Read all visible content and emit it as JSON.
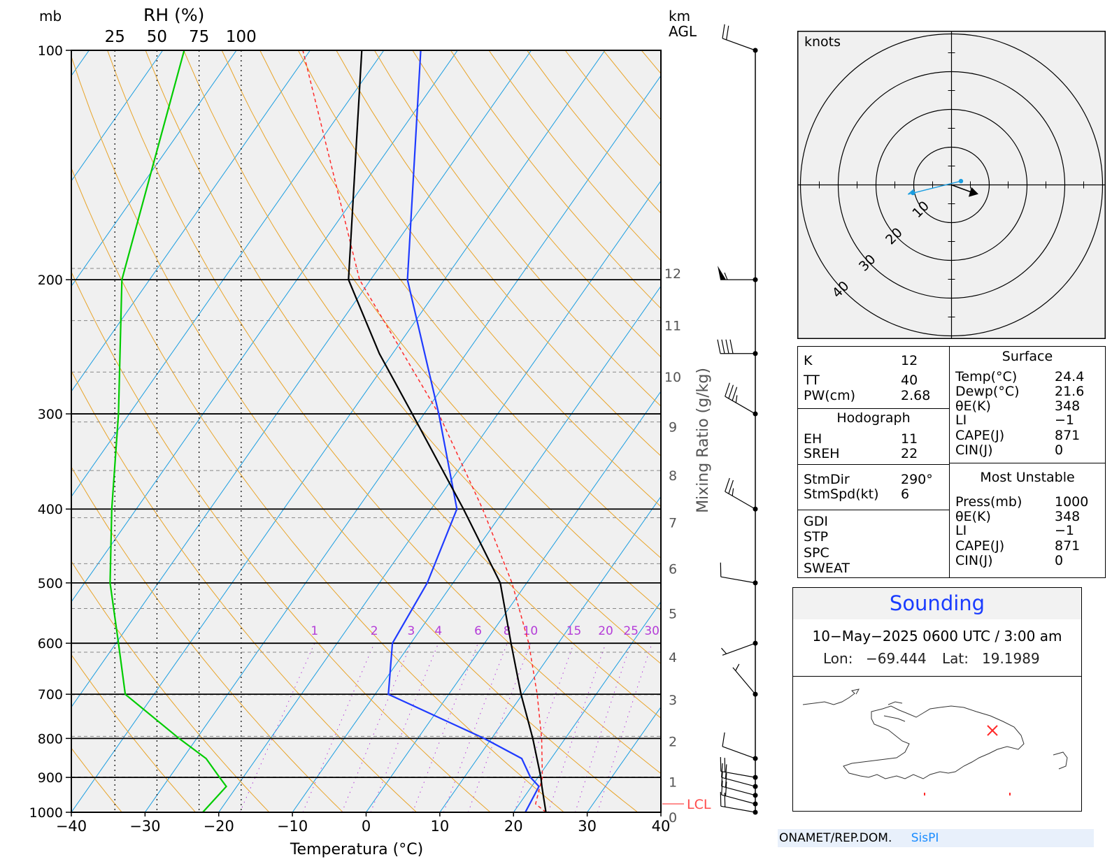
{
  "skewt": {
    "labels": {
      "mb": "mb",
      "rh": "RH (%)",
      "km": "km",
      "agl": "AGL",
      "xlabel": "Temperatura (°C)",
      "mixing_ratio_label": "Mixing Ratio (g/kg)",
      "lcl": "LCL"
    },
    "rh_ticks": [
      "25",
      "50",
      "75",
      "100"
    ],
    "colors": {
      "temperature": "#000000",
      "dewpoint": "#1f3bff",
      "rh": "#00cc00",
      "parcel": "#ff2a2a",
      "isotherm": "#1a9de0",
      "dry_adiabat": "#e8a42a",
      "mixing_ratio": "#b43cd8"
    }
  },
  "chart_data": {
    "type": "line",
    "x_unit": "°C",
    "y_unit": "mb",
    "xlim": [
      -40,
      40
    ],
    "ylim": [
      1000,
      100
    ],
    "y_scale": "log",
    "x_ticks": [
      -40,
      -30,
      -20,
      -10,
      0,
      10,
      20,
      30,
      40
    ],
    "y_ticks": [
      100,
      200,
      300,
      400,
      500,
      600,
      700,
      800,
      900,
      1000
    ],
    "height_km_ticks": [
      0,
      1,
      2,
      3,
      4,
      5,
      6,
      7,
      8,
      9,
      10,
      11,
      12
    ],
    "mixing_ratio_ticks": [
      1,
      2,
      3,
      4,
      6,
      8,
      10,
      15,
      20,
      25,
      30
    ],
    "lcl_pressure_mb": 975,
    "series_points_note": "points are (pressure mb, value)",
    "temperature": [
      [
        1000,
        24.4
      ],
      [
        925,
        21.4
      ],
      [
        900,
        20.4
      ],
      [
        800,
        15.6
      ],
      [
        700,
        9.8
      ],
      [
        600,
        3.6
      ],
      [
        500,
        -3.6
      ],
      [
        400,
        -15.6
      ],
      [
        300,
        -31.6
      ],
      [
        250,
        -41.8
      ],
      [
        200,
        -53.0
      ],
      [
        100,
        -73.0
      ]
    ],
    "dewpoint": [
      [
        1000,
        21.6
      ],
      [
        925,
        21.0
      ],
      [
        900,
        19.0
      ],
      [
        850,
        16.0
      ],
      [
        800,
        9.0
      ],
      [
        700,
        -8.2
      ],
      [
        600,
        -12.5
      ],
      [
        500,
        -13.5
      ],
      [
        400,
        -16.5
      ],
      [
        300,
        -28.0
      ],
      [
        200,
        -45.0
      ],
      [
        100,
        -65.0
      ]
    ],
    "parcel": [
      [
        1000,
        24.4
      ],
      [
        975,
        22.2
      ],
      [
        900,
        20.6
      ],
      [
        800,
        16.8
      ],
      [
        700,
        12.0
      ],
      [
        600,
        6.0
      ],
      [
        500,
        -2.0
      ],
      [
        400,
        -13.0
      ],
      [
        300,
        -28.0
      ],
      [
        200,
        -51.5
      ],
      [
        100,
        -81.0
      ]
    ],
    "rh_percent": [
      [
        1000,
        78
      ],
      [
        925,
        92
      ],
      [
        900,
        88
      ],
      [
        850,
        80
      ],
      [
        800,
        64
      ],
      [
        700,
        32
      ],
      [
        600,
        28
      ],
      [
        500,
        23
      ],
      [
        400,
        24
      ],
      [
        300,
        28
      ],
      [
        200,
        30
      ],
      [
        100,
        67
      ]
    ],
    "wind_barbs_kt": [
      {
        "p": 1000,
        "dir": 280,
        "spd": 20
      },
      {
        "p": 975,
        "dir": 285,
        "spd": 20
      },
      {
        "p": 950,
        "dir": 285,
        "spd": 20
      },
      {
        "p": 925,
        "dir": 285,
        "spd": 20
      },
      {
        "p": 900,
        "dir": 280,
        "spd": 20
      },
      {
        "p": 850,
        "dir": 290,
        "spd": 10
      },
      {
        "p": 700,
        "dir": 320,
        "spd": 5
      },
      {
        "p": 600,
        "dir": 250,
        "spd": 5
      },
      {
        "p": 500,
        "dir": 280,
        "spd": 10
      },
      {
        "p": 400,
        "dir": 300,
        "spd": 25
      },
      {
        "p": 300,
        "dir": 300,
        "spd": 35
      },
      {
        "p": 250,
        "dir": 270,
        "spd": 40
      },
      {
        "p": 200,
        "dir": 270,
        "spd": 55
      },
      {
        "p": 100,
        "dir": 290,
        "spd": 20
      }
    ],
    "hodograph": {
      "label": "knots",
      "ring_labels": [
        "10",
        "20",
        "30",
        "40"
      ],
      "storm_motion": {
        "dir": 290,
        "spd": 6
      },
      "points_uv": [
        [
          2.5,
          1.0
        ],
        [
          -7.5,
          -1.5
        ],
        [
          -11.5,
          -2.5
        ],
        [
          -10.0,
          -1.2
        ]
      ]
    }
  },
  "indices": {
    "left": [
      {
        "label": "K",
        "value": "12"
      },
      {
        "label": "TT",
        "value": "40"
      },
      {
        "label": "PW(cm)",
        "value": "2.68"
      }
    ],
    "hodograph_header": "Hodograph",
    "hodo": [
      {
        "label": "EH",
        "value": "11"
      },
      {
        "label": "SREH",
        "value": "22"
      }
    ],
    "storm": [
      {
        "label": "StmDir",
        "value": "290°"
      },
      {
        "label": "StmSpd(kt)",
        "value": "6"
      }
    ],
    "other": [
      "GDI",
      "STP",
      "SPC",
      "SWEAT"
    ],
    "surface_header": "Surface",
    "surface": [
      {
        "label": "Temp(°C)",
        "value": "24.4"
      },
      {
        "label": "Dewp(°C)",
        "value": "21.6"
      },
      {
        "label": "θE(K)",
        "value": "348"
      },
      {
        "label": "LI",
        "value": "−1"
      },
      {
        "label": "CAPE(J)",
        "value": "871"
      },
      {
        "label": "CIN(J)",
        "value": "0"
      }
    ],
    "mu_header": "Most Unstable",
    "mu": [
      {
        "label": "Press(mb)",
        "value": "1000"
      },
      {
        "label": "θE(K)",
        "value": "348"
      },
      {
        "label": "LI",
        "value": "−1"
      },
      {
        "label": "CAPE(J)",
        "value": "871"
      },
      {
        "label": "CIN(J)",
        "value": "0"
      }
    ]
  },
  "sounding": {
    "title": "Sounding",
    "datetime": "10−May−2025 0600 UTC / 3:00 am",
    "lon_label": "Lon:",
    "lon": "−69.444",
    "lat_label": "Lat:",
    "lat": "19.1989",
    "map_marker_color": "#ff2a2a"
  },
  "footer": {
    "org": "ONAMET/REP.DOM.",
    "brand": "SisPI"
  }
}
